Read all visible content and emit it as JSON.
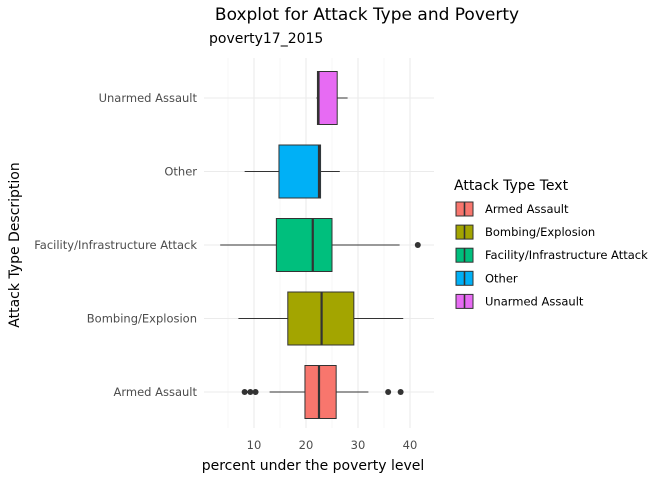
{
  "chart_data": {
    "type": "boxplot",
    "orientation": "horizontal",
    "title": "Boxplot  for Attack Type and Poverty",
    "subtitle": "poverty17_2015",
    "xlabel": "percent under the poverty level",
    "ylabel": "Attack Type Description",
    "xlim": [
      3,
      43
    ],
    "x_ticks": [
      10,
      20,
      30,
      40
    ],
    "grid": true,
    "legend": {
      "title": "Attack Type Text",
      "placement": "right",
      "entries": [
        "Armed Assault",
        "Bombing/Explosion",
        "Facility/Infrastructure Attack",
        "Other",
        "Unarmed Assault"
      ]
    },
    "categories": [
      "Armed Assault",
      "Bombing/Explosion",
      "Facility/Infrastructure Attack",
      "Other",
      "Unarmed Assault"
    ],
    "boxes": [
      {
        "category": "Armed Assault",
        "color": "#F8766D",
        "whisker_low": 13,
        "q1": 19.8,
        "median": 22.5,
        "q3": 25.8,
        "whisker_high": 32,
        "outliers": [
          8.2,
          9.3,
          10.3,
          35.8,
          38.2
        ]
      },
      {
        "category": "Bombing/Explosion",
        "color": "#A3A500",
        "whisker_low": 7,
        "q1": 16.5,
        "median": 23,
        "q3": 29.2,
        "whisker_high": 38.7,
        "outliers": []
      },
      {
        "category": "Facility/Infrastructure Attack",
        "color": "#00BF7D",
        "whisker_low": 3.5,
        "q1": 14.3,
        "median": 21.3,
        "q3": 25,
        "whisker_high": 38,
        "outliers": [
          41.5
        ]
      },
      {
        "category": "Other",
        "color": "#00B0F6",
        "whisker_low": 8.2,
        "q1": 14.8,
        "median": 22.5,
        "q3": 22.8,
        "whisker_high": 26.5,
        "outliers": []
      },
      {
        "category": "Unarmed Assault",
        "color": "#E76BF3",
        "whisker_low": 22,
        "q1": 22.2,
        "median": 22.4,
        "q3": 26,
        "whisker_high": 28,
        "outliers": []
      }
    ]
  }
}
